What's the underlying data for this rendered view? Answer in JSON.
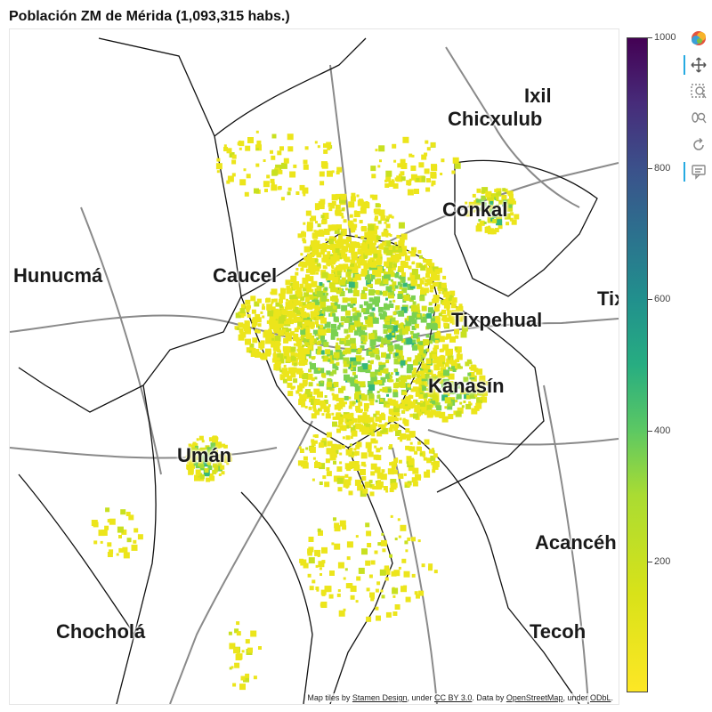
{
  "title": "Población ZM de Mérida (1,093,315 habs.)",
  "places": [
    {
      "name": "Ixil"
    },
    {
      "name": "Chicxulub"
    },
    {
      "name": "Conkal"
    },
    {
      "name": "Hunucmá"
    },
    {
      "name": "Caucel"
    },
    {
      "name": "Tixpehual"
    },
    {
      "name": "Tix"
    },
    {
      "name": "Kanasín"
    },
    {
      "name": "Umán"
    },
    {
      "name": "Acancéh"
    },
    {
      "name": "Chocholá"
    },
    {
      "name": "Tecoh"
    }
  ],
  "attribution": {
    "prefix": "Map tiles by ",
    "stamen": "Stamen Design",
    "under1": ", under ",
    "ccby": "CC BY 3.0",
    "data": ". Data by ",
    "osm": "OpenStreetMap",
    "under2": ", under ",
    "odbl": "ODbL",
    "end": "."
  },
  "colorbar": {
    "min": 0,
    "max": 1000,
    "ticks": [
      "1000",
      "800",
      "600",
      "400",
      "200"
    ],
    "palette": [
      "#440154",
      "#3b528b",
      "#21918c",
      "#5ec962",
      "#fde725"
    ]
  },
  "toolbar": [
    {
      "name": "bokeh-logo-icon"
    },
    {
      "name": "pan-tool-icon"
    },
    {
      "name": "box-zoom-tool-icon"
    },
    {
      "name": "wheel-zoom-tool-icon"
    },
    {
      "name": "reset-tool-icon"
    },
    {
      "name": "hover-tool-icon"
    }
  ]
}
